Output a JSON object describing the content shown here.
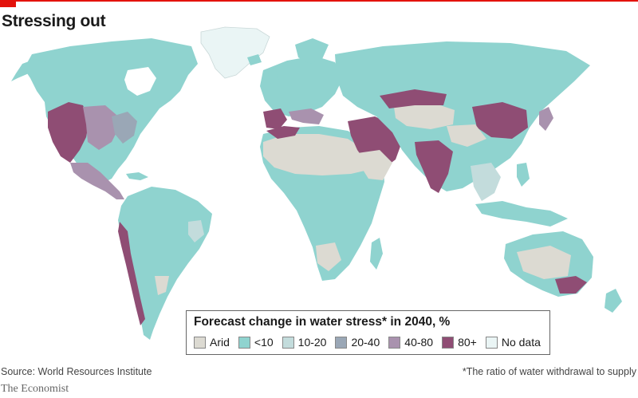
{
  "title": "Stressing out",
  "legend": {
    "title": "Forecast change in water stress* in 2040, %",
    "items": [
      {
        "label": "Arid",
        "color": "#dcdad2"
      },
      {
        "label": "<10",
        "color": "#8fd3cf"
      },
      {
        "label": "10-20",
        "color": "#c3dcdc"
      },
      {
        "label": "20-40",
        "color": "#9aa7b6"
      },
      {
        "label": "40-80",
        "color": "#a992ae"
      },
      {
        "label": "80+",
        "color": "#8f4d74"
      },
      {
        "label": "No data",
        "color": "#eaf5f5"
      }
    ]
  },
  "source": "Source: World Resources Institute",
  "footnote": "*The ratio of water withdrawal to supply",
  "brand": "The Economist"
}
